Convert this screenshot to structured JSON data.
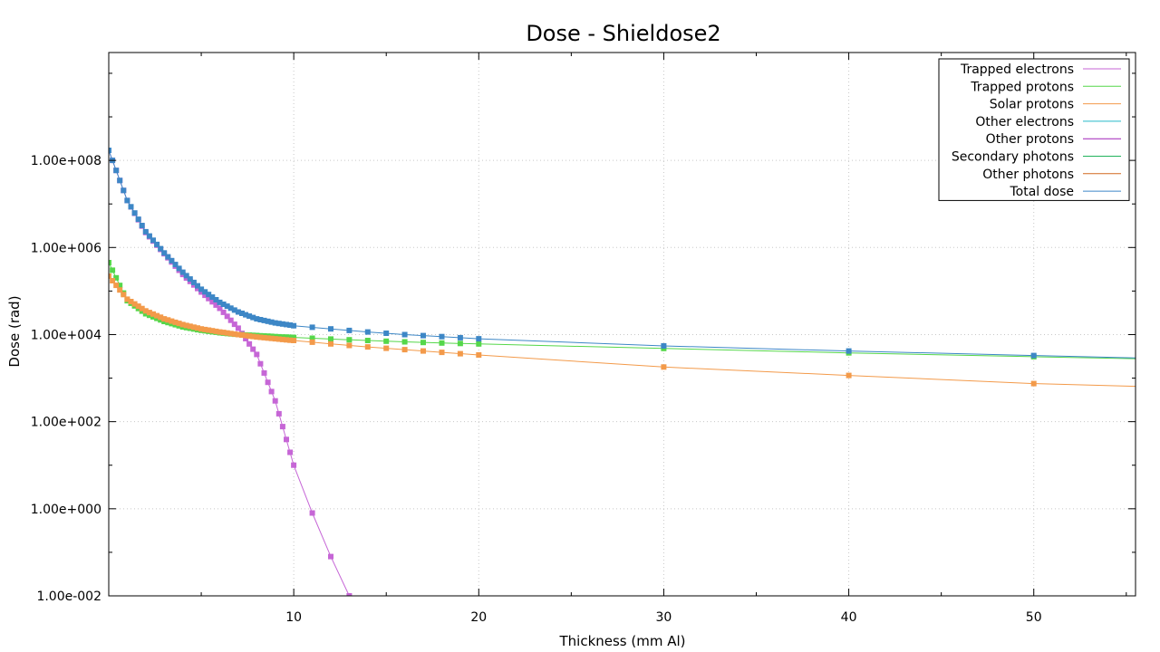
{
  "chart_data": {
    "type": "line",
    "title": "Dose - Shieldose2",
    "xlabel": "Thickness  (mm Al)",
    "ylabel": "Dose (rad)",
    "xlim": [
      0,
      55.5
    ],
    "ylim": [
      0.01,
      30000000000
    ],
    "y_scale": "log",
    "grid": true,
    "legend_position": "top-right",
    "x_ticks": [
      10,
      20,
      30,
      40,
      50
    ],
    "x_tick_labels": [
      "10",
      "20",
      "30",
      "40",
      "50"
    ],
    "y_ticks": [
      0.01,
      1,
      100,
      10000,
      1000000,
      100000000
    ],
    "y_tick_labels": [
      "1.00e-002",
      "1.00e+000",
      "1.00e+002",
      "1.00e+004",
      "1.00e+006",
      "1.00e+008"
    ],
    "series": [
      {
        "name": "Trapped electrons",
        "color": "#c666d6",
        "x": [
          0,
          1,
          2,
          3,
          4,
          5,
          6,
          7,
          8,
          9,
          10,
          11,
          12,
          13,
          14
        ],
        "y": [
          170000000,
          12000000,
          2200000,
          720000,
          240000,
          95000,
          40000,
          14000,
          3500,
          300,
          10,
          0.8,
          0.08,
          0.01,
          0.001
        ]
      },
      {
        "name": "Trapped protons",
        "color": "#55d74a",
        "x": [
          0,
          1,
          2,
          3,
          4,
          5,
          6,
          7,
          8,
          9,
          10,
          12,
          14,
          16,
          18,
          20,
          30,
          40,
          50,
          55.5
        ],
        "y": [
          450000,
          60000,
          30000,
          20000,
          15000,
          12500,
          11000,
          10000,
          9500,
          9000,
          8600,
          7900,
          7300,
          6800,
          6400,
          6100,
          4800,
          3800,
          3100,
          2800
        ]
      },
      {
        "name": "Solar protons",
        "color": "#f39a4a",
        "x": [
          0,
          1,
          2,
          3,
          4,
          5,
          6,
          7,
          8,
          9,
          10,
          12,
          14,
          16,
          18,
          20,
          30,
          40,
          50,
          55.5
        ],
        "y": [
          220000,
          65000,
          35000,
          23000,
          17000,
          13500,
          11500,
          10000,
          8800,
          8000,
          7300,
          6100,
          5200,
          4500,
          3900,
          3400,
          1800,
          1150,
          750,
          650
        ]
      },
      {
        "name": "Other electrons",
        "color": "#26b9c9",
        "x": [],
        "y": []
      },
      {
        "name": "Other protons",
        "color": "#a020b8",
        "x": [],
        "y": []
      },
      {
        "name": "Secondary photons",
        "color": "#22b35c",
        "x": [],
        "y": []
      },
      {
        "name": "Other photons",
        "color": "#d2691e",
        "x": [],
        "y": []
      },
      {
        "name": "Total dose",
        "color": "#3d87c6",
        "x": [
          0,
          1,
          2,
          3,
          4,
          5,
          6,
          7,
          8,
          9,
          10,
          12,
          14,
          16,
          18,
          20,
          30,
          40,
          50,
          55.5
        ],
        "y": [
          170000000,
          12000000,
          2300000,
          750000,
          270000,
          110000,
          55000,
          33000,
          23000,
          18500,
          16000,
          13500,
          11500,
          10000,
          9000,
          8000,
          5500,
          4200,
          3300,
          2900
        ]
      }
    ]
  }
}
